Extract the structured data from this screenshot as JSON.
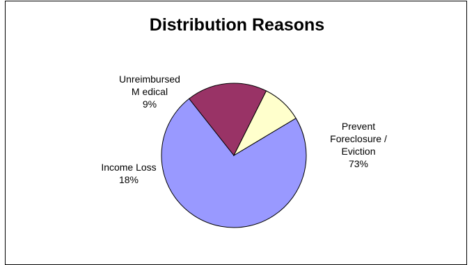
{
  "chart_data": {
    "type": "pie",
    "title": "Distribution Reasons",
    "slices": [
      {
        "label_lines": [
          "Prevent",
          "Foreclosure /",
          "Eviction"
        ],
        "percent_label": "73%",
        "value": 73,
        "color": "#9999ff"
      },
      {
        "label_lines": [
          "Income Loss"
        ],
        "percent_label": "18%",
        "value": 18,
        "color": "#993366"
      },
      {
        "label_lines": [
          "Unreimbursed",
          "M edical"
        ],
        "percent_label": "9%",
        "value": 9,
        "color": "#ffffcc"
      }
    ],
    "legend": "none"
  }
}
